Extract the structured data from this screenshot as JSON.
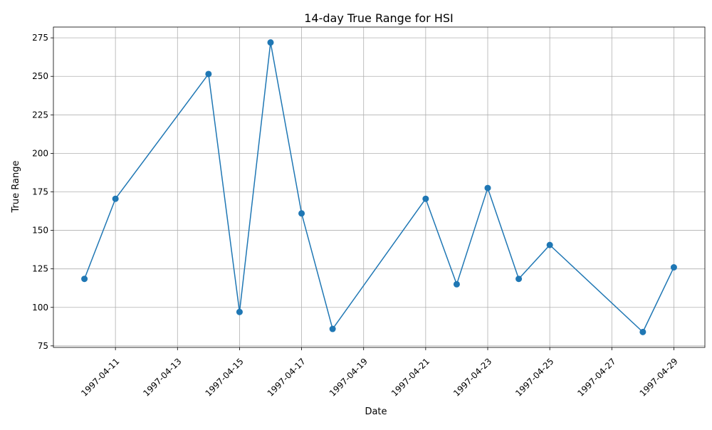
{
  "chart_data": {
    "type": "line",
    "title": "14-day True Range for HSI",
    "xlabel": "Date",
    "ylabel": "True Range",
    "x": [
      "1997-04-10",
      "1997-04-11",
      "1997-04-14",
      "1997-04-15",
      "1997-04-16",
      "1997-04-17",
      "1997-04-18",
      "1997-04-21",
      "1997-04-22",
      "1997-04-23",
      "1997-04-24",
      "1997-04-25",
      "1997-04-28",
      "1997-04-29"
    ],
    "values": [
      118.5,
      170.5,
      251.5,
      97,
      272,
      161,
      86,
      170.5,
      115,
      177.5,
      118.5,
      140.5,
      84,
      126
    ],
    "xlim": [
      "1997-04-09",
      "1997-04-30"
    ],
    "ylim": [
      74,
      282
    ],
    "x_ticks": [
      "1997-04-11",
      "1997-04-13",
      "1997-04-15",
      "1997-04-17",
      "1997-04-19",
      "1997-04-21",
      "1997-04-23",
      "1997-04-25",
      "1997-04-27",
      "1997-04-29"
    ],
    "y_ticks": [
      75,
      100,
      125,
      150,
      175,
      200,
      225,
      250,
      275
    ],
    "grid": true,
    "marker": "circle",
    "line_color": "#1f77b4"
  }
}
